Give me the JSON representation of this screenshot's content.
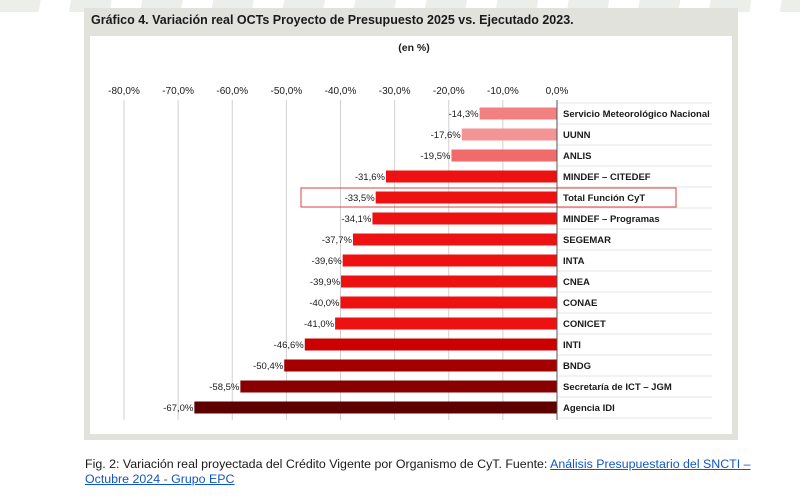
{
  "chart_data": {
    "type": "bar",
    "orientation": "horizontal",
    "title": "Gráfico 4. Variación real OCTs Proyecto de Presupuesto 2025 vs. Ejecutado 2023.",
    "unit_label": "(en %)",
    "xlim": [
      -80,
      0
    ],
    "ticks": [
      -80,
      -70,
      -60,
      -50,
      -40,
      -30,
      -20,
      -10,
      0
    ],
    "tick_labels": [
      "-80,0%",
      "-70,0%",
      "-60,0%",
      "-50,0%",
      "-40,0%",
      "-30,0%",
      "-20,0%",
      "-10,0%",
      "0,0%"
    ],
    "grid": true,
    "highlighted_category": "Total Función CyT",
    "categories": [
      "Servicio Meteorológico Nacional",
      "UUNN",
      "ANLIS",
      "MINDEF – CITEDEF",
      "Total Función CyT",
      "MINDEF – Programas",
      "SEGEMAR",
      "INTA",
      "CNEA",
      "CONAE",
      "CONICET",
      "INTI",
      "BNDG",
      "Secretaría de ICT – JGM",
      "Agencia IDI"
    ],
    "values": [
      -14.3,
      -17.6,
      -19.5,
      -31.6,
      -33.5,
      -34.1,
      -37.7,
      -39.6,
      -39.9,
      -40.0,
      -41.0,
      -46.6,
      -50.4,
      -58.5,
      -67.0
    ],
    "value_labels": [
      "-14,3%",
      "-17,6%",
      "-19,5%",
      "-31,6%",
      "-33,5%",
      "-34,1%",
      "-37,7%",
      "-39,6%",
      "-39,9%",
      "-40,0%",
      "-41,0%",
      "-46,6%",
      "-50,4%",
      "-58,5%",
      "-67,0%"
    ],
    "colors": [
      "#f28080",
      "#f49494",
      "#f26b6b",
      "#ee1111",
      "#ee1111",
      "#ee1111",
      "#ee1111",
      "#ee1111",
      "#ee1111",
      "#ee1111",
      "#ee1111",
      "#cc0000",
      "#a50000",
      "#880000",
      "#5e0000"
    ],
    "highlight_color": "#d94040"
  },
  "caption": {
    "text": "Fig. 2: Variación real proyectada del Crédito Vigente por Organismo de CyT. Fuente: ",
    "link": "Análisis Presupuestario del SNCTI – Octubre 2024 - Grupo EPC",
    "link_color": "#1155cc"
  }
}
